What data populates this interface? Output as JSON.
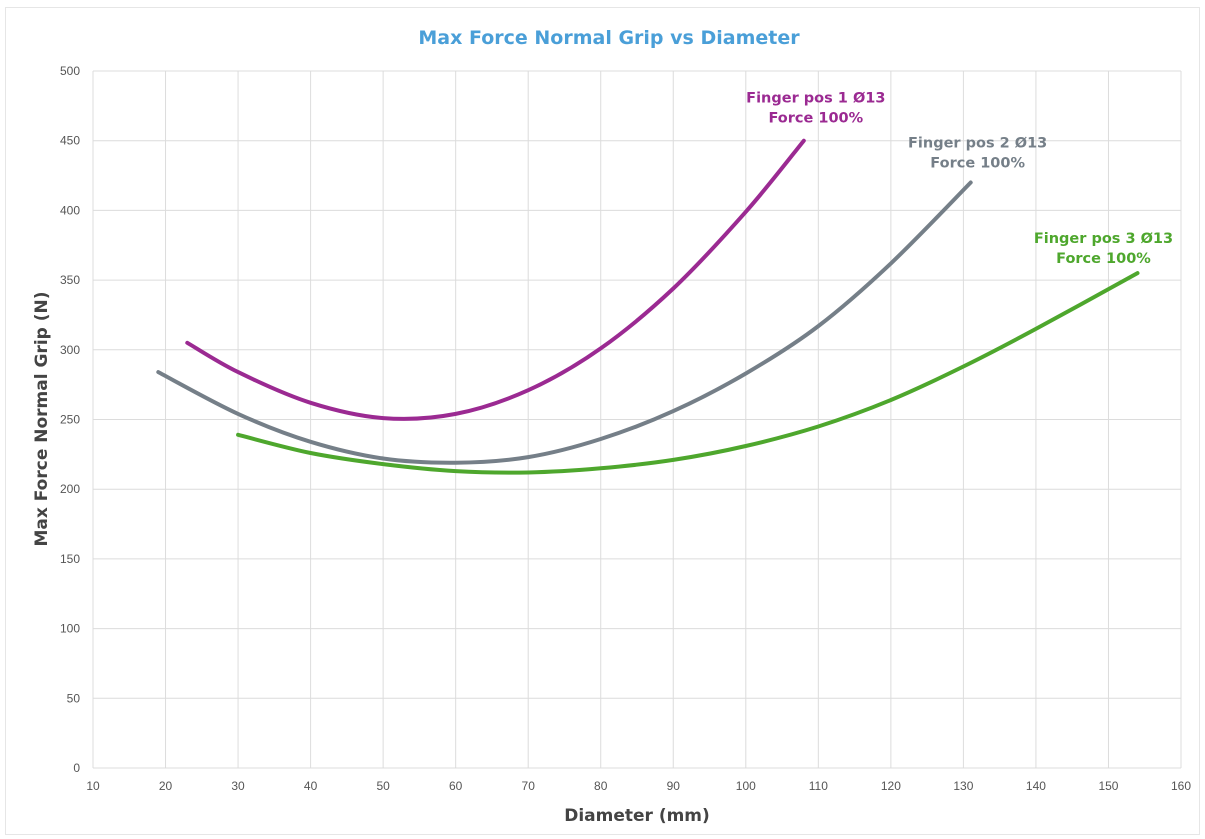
{
  "chart_data": {
    "type": "line",
    "title": "Max Force Normal Grip vs Diameter",
    "title_color": "#4a9fd8",
    "xlabel": "Diameter (mm)",
    "ylabel": "Max Force Normal Grip (N)",
    "xlim": [
      10,
      160
    ],
    "ylim": [
      0,
      500
    ],
    "x_ticks": [
      10,
      20,
      30,
      40,
      50,
      60,
      70,
      80,
      90,
      100,
      110,
      120,
      130,
      140,
      150,
      160
    ],
    "y_ticks": [
      0,
      50,
      100,
      150,
      200,
      250,
      300,
      350,
      400,
      450,
      500
    ],
    "grid": true,
    "legend": "none",
    "series": [
      {
        "name": "Finger pos 1 Ø13",
        "label_line1": "Finger pos 1 Ø13",
        "label_line2": "Force 100%",
        "color": "#9b2a92",
        "x": [
          23,
          30,
          40,
          50,
          60,
          70,
          80,
          90,
          100,
          108
        ],
        "y": [
          305,
          284,
          262,
          251,
          254,
          271,
          301,
          344,
          399,
          450
        ]
      },
      {
        "name": "Finger pos 2 Ø13",
        "label_line1": "Finger pos 2 Ø13",
        "label_line2": "Force 100%",
        "color": "#757f88",
        "x": [
          19,
          30,
          40,
          50,
          60,
          70,
          80,
          90,
          100,
          110,
          120,
          131
        ],
        "y": [
          284,
          254,
          234,
          222,
          219,
          223,
          236,
          256,
          283,
          317,
          362,
          420
        ]
      },
      {
        "name": "Finger pos 3 Ø13",
        "label_line1": "Finger pos 3 Ø13",
        "label_line2": "Force 100%",
        "color": "#4ea72d",
        "x": [
          30,
          40,
          50,
          60,
          70,
          80,
          90,
          100,
          110,
          120,
          130,
          140,
          154
        ],
        "y": [
          239,
          226,
          218,
          213,
          212,
          215,
          221,
          231,
          245,
          264,
          288,
          315,
          355
        ]
      }
    ]
  }
}
